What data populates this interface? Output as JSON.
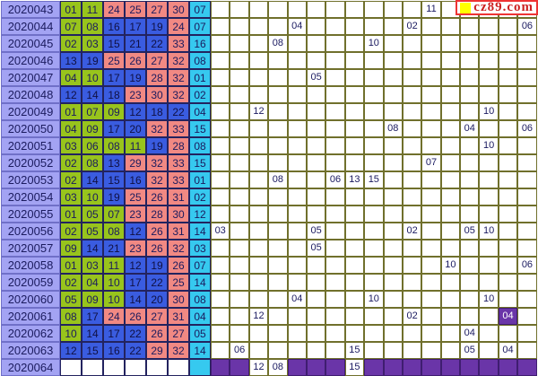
{
  "watermark": {
    "text": "cz89.com",
    "square_color": "#ffff00",
    "text_color": "#cc2222"
  },
  "palette": {
    "zone1_green": "#98c41c",
    "zone2_blue": "#3a5ce0",
    "zone3_red": "#f18983",
    "blue_ball_cyan": "#36c9ef",
    "period_lavender": "#a3a3f3",
    "pending_purple": "#6a35a8",
    "grid_border_olive": "#70702c"
  },
  "grid_column_count": 17,
  "rows": [
    {
      "period": "2020043",
      "balls": [
        [
          "01",
          "g"
        ],
        [
          "11",
          "g"
        ],
        [
          "24",
          "r"
        ],
        [
          "25",
          "r"
        ],
        [
          "27",
          "r"
        ],
        [
          "30",
          "r"
        ]
      ],
      "blue": "07",
      "grid": {
        "11": "11"
      }
    },
    {
      "period": "2020044",
      "balls": [
        [
          "07",
          "g"
        ],
        [
          "08",
          "g"
        ],
        [
          "16",
          "b"
        ],
        [
          "17",
          "b"
        ],
        [
          "19",
          "b"
        ],
        [
          "24",
          "r"
        ]
      ],
      "blue": "07",
      "grid": {
        "4": "04",
        "10": "02",
        "16": "06"
      }
    },
    {
      "period": "2020045",
      "balls": [
        [
          "02",
          "g"
        ],
        [
          "03",
          "g"
        ],
        [
          "15",
          "b"
        ],
        [
          "21",
          "b"
        ],
        [
          "22",
          "b"
        ],
        [
          "33",
          "r"
        ]
      ],
      "blue": "16",
      "grid": {
        "3": "08",
        "8": "10"
      }
    },
    {
      "period": "2020046",
      "balls": [
        [
          "13",
          "b"
        ],
        [
          "19",
          "b"
        ],
        [
          "25",
          "r"
        ],
        [
          "26",
          "r"
        ],
        [
          "27",
          "r"
        ],
        [
          "32",
          "r"
        ]
      ],
      "blue": "08",
      "grid": {}
    },
    {
      "period": "2020047",
      "balls": [
        [
          "04",
          "g"
        ],
        [
          "10",
          "g"
        ],
        [
          "17",
          "b"
        ],
        [
          "19",
          "b"
        ],
        [
          "28",
          "r"
        ],
        [
          "32",
          "r"
        ]
      ],
      "blue": "01",
      "grid": {
        "5": "05"
      }
    },
    {
      "period": "2020048",
      "balls": [
        [
          "12",
          "b"
        ],
        [
          "14",
          "b"
        ],
        [
          "18",
          "b"
        ],
        [
          "23",
          "r"
        ],
        [
          "30",
          "r"
        ],
        [
          "32",
          "r"
        ]
      ],
      "blue": "02",
      "grid": {}
    },
    {
      "period": "2020049",
      "balls": [
        [
          "01",
          "g"
        ],
        [
          "07",
          "g"
        ],
        [
          "09",
          "g"
        ],
        [
          "12",
          "b"
        ],
        [
          "18",
          "b"
        ],
        [
          "22",
          "b"
        ]
      ],
      "blue": "04",
      "grid": {
        "2": "12",
        "14": "10"
      }
    },
    {
      "period": "2020050",
      "balls": [
        [
          "04",
          "g"
        ],
        [
          "09",
          "g"
        ],
        [
          "17",
          "b"
        ],
        [
          "20",
          "b"
        ],
        [
          "32",
          "r"
        ],
        [
          "33",
          "r"
        ]
      ],
      "blue": "15",
      "grid": {
        "9": "08",
        "13": "04",
        "16": "06"
      }
    },
    {
      "period": "2020051",
      "balls": [
        [
          "03",
          "g"
        ],
        [
          "06",
          "g"
        ],
        [
          "08",
          "g"
        ],
        [
          "11",
          "g"
        ],
        [
          "19",
          "b"
        ],
        [
          "28",
          "r"
        ]
      ],
      "blue": "08",
      "grid": {
        "14": "10"
      }
    },
    {
      "period": "2020052",
      "balls": [
        [
          "02",
          "g"
        ],
        [
          "08",
          "g"
        ],
        [
          "13",
          "b"
        ],
        [
          "29",
          "r"
        ],
        [
          "32",
          "r"
        ],
        [
          "33",
          "r"
        ]
      ],
      "blue": "15",
      "grid": {
        "11": "07"
      }
    },
    {
      "period": "2020053",
      "balls": [
        [
          "02",
          "g"
        ],
        [
          "14",
          "b"
        ],
        [
          "15",
          "b"
        ],
        [
          "16",
          "b"
        ],
        [
          "32",
          "r"
        ],
        [
          "33",
          "r"
        ]
      ],
      "blue": "01",
      "grid": {
        "3": "08",
        "6": "06",
        "7": "13",
        "8": "15"
      }
    },
    {
      "period": "2020054",
      "balls": [
        [
          "03",
          "g"
        ],
        [
          "10",
          "g"
        ],
        [
          "19",
          "b"
        ],
        [
          "25",
          "r"
        ],
        [
          "26",
          "r"
        ],
        [
          "31",
          "r"
        ]
      ],
      "blue": "02",
      "grid": {}
    },
    {
      "period": "2020055",
      "balls": [
        [
          "01",
          "g"
        ],
        [
          "05",
          "g"
        ],
        [
          "07",
          "g"
        ],
        [
          "23",
          "r"
        ],
        [
          "28",
          "r"
        ],
        [
          "30",
          "r"
        ]
      ],
      "blue": "12",
      "grid": {}
    },
    {
      "period": "2020056",
      "balls": [
        [
          "02",
          "g"
        ],
        [
          "05",
          "g"
        ],
        [
          "08",
          "g"
        ],
        [
          "12",
          "b"
        ],
        [
          "26",
          "r"
        ],
        [
          "31",
          "r"
        ]
      ],
      "blue": "14",
      "grid": {
        "0": "03",
        "5": "05",
        "10": "02",
        "13": "05",
        "14": "10"
      }
    },
    {
      "period": "2020057",
      "balls": [
        [
          "09",
          "g"
        ],
        [
          "14",
          "b"
        ],
        [
          "21",
          "b"
        ],
        [
          "23",
          "r"
        ],
        [
          "26",
          "r"
        ],
        [
          "32",
          "r"
        ]
      ],
      "blue": "03",
      "grid": {
        "5": "05"
      }
    },
    {
      "period": "2020058",
      "balls": [
        [
          "01",
          "g"
        ],
        [
          "03",
          "g"
        ],
        [
          "11",
          "g"
        ],
        [
          "12",
          "b"
        ],
        [
          "19",
          "b"
        ],
        [
          "26",
          "r"
        ]
      ],
      "blue": "07",
      "grid": {
        "12": "10",
        "16": "06"
      }
    },
    {
      "period": "2020059",
      "balls": [
        [
          "02",
          "g"
        ],
        [
          "04",
          "g"
        ],
        [
          "10",
          "g"
        ],
        [
          "17",
          "b"
        ],
        [
          "22",
          "b"
        ],
        [
          "25",
          "r"
        ]
      ],
      "blue": "14",
      "grid": {}
    },
    {
      "period": "2020060",
      "balls": [
        [
          "05",
          "g"
        ],
        [
          "09",
          "g"
        ],
        [
          "10",
          "g"
        ],
        [
          "14",
          "b"
        ],
        [
          "20",
          "b"
        ],
        [
          "30",
          "r"
        ]
      ],
      "blue": "08",
      "grid": {
        "4": "04",
        "8": "10",
        "14": "10"
      }
    },
    {
      "period": "2020061",
      "balls": [
        [
          "08",
          "g"
        ],
        [
          "17",
          "b"
        ],
        [
          "24",
          "r"
        ],
        [
          "26",
          "r"
        ],
        [
          "27",
          "r"
        ],
        [
          "31",
          "r"
        ]
      ],
      "blue": "04",
      "grid": {
        "2": "12",
        "10": "02"
      },
      "grid_hl": {
        "15": "04"
      }
    },
    {
      "period": "2020062",
      "balls": [
        [
          "10",
          "g"
        ],
        [
          "14",
          "b"
        ],
        [
          "17",
          "b"
        ],
        [
          "22",
          "b"
        ],
        [
          "26",
          "r"
        ],
        [
          "27",
          "r"
        ]
      ],
      "blue": "05",
      "grid": {
        "13": "04"
      }
    },
    {
      "period": "2020063",
      "balls": [
        [
          "12",
          "b"
        ],
        [
          "15",
          "b"
        ],
        [
          "16",
          "b"
        ],
        [
          "22",
          "b"
        ],
        [
          "29",
          "r"
        ],
        [
          "32",
          "r"
        ]
      ],
      "blue": "14",
      "grid": {
        "1": "06",
        "7": "15",
        "13": "05",
        "15": "04"
      }
    },
    {
      "period": "2020064",
      "balls": [],
      "blue": "",
      "grid": {
        "2": "12",
        "3": "08",
        "7": "15"
      },
      "pending": true
    }
  ]
}
